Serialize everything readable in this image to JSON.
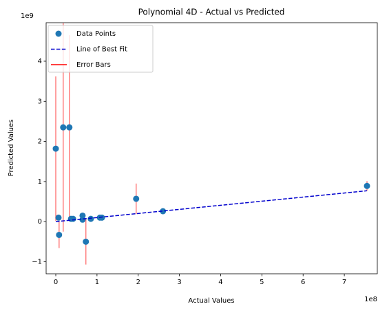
{
  "chart_data": {
    "type": "scatter",
    "title": "Polynomial 4D - Actual vs Predicted",
    "x_label": "Actual Values",
    "y_label": "Predicted Values",
    "x_offset_label": "1e8",
    "y_offset_label": "1e9",
    "xlim": [
      -23400000,
      780000000
    ],
    "ylim": [
      -1300000000,
      4960000000
    ],
    "xticks": [
      0,
      {
        "value": 100000000,
        "label": "1"
      },
      {
        "value": 200000000,
        "label": "2"
      },
      {
        "value": 300000000,
        "label": "3"
      },
      {
        "value": 400000000,
        "label": "4"
      },
      {
        "value": 500000000,
        "label": "5"
      },
      {
        "value": 600000000,
        "label": "6"
      },
      {
        "value": 700000000,
        "label": "7"
      }
    ],
    "yticks": [
      {
        "value": -1000000000,
        "label": "−1"
      },
      0,
      {
        "value": 1000000000,
        "label": "1"
      },
      {
        "value": 2000000000,
        "label": "2"
      },
      {
        "value": 3000000000,
        "label": "3"
      },
      {
        "value": 4000000000,
        "label": "4"
      }
    ],
    "legend": "upper left",
    "series": [
      {
        "name": "Data Points",
        "color": "#1f77b4",
        "x": [
          0,
          6700000,
          8000000,
          18000000,
          33000000,
          37000000,
          42000000,
          65000000,
          65000000,
          73000000,
          85000000,
          107000000,
          112000000,
          195000000,
          260000000,
          755000000
        ],
        "values": [
          1820000000,
          100000000,
          -330000000,
          2350000000,
          2350000000,
          70000000,
          70000000,
          150000000,
          50000000,
          -500000000,
          70000000,
          100000000,
          100000000,
          570000000,
          260000000,
          890000000
        ],
        "errors": [
          1800000000,
          0,
          330000000,
          2600000000,
          2300000000,
          0,
          0,
          0,
          0,
          570000000,
          0,
          0,
          0,
          380000000,
          0,
          120000000
        ]
      }
    ],
    "fit_line": {
      "name": "Line of Best Fit",
      "color": "#0000cd",
      "x": [
        0,
        755000000
      ],
      "values": [
        0,
        770000000
      ]
    },
    "error_bars": {
      "name": "Error Bars",
      "color": "#ff0000"
    }
  }
}
